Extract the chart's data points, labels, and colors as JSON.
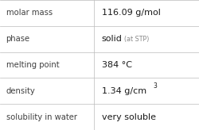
{
  "rows": [
    {
      "label": "molar mass",
      "value": "116.09 g/mol"
    },
    {
      "label": "phase",
      "value": "solid",
      "extra": "(at STP)"
    },
    {
      "label": "melting point",
      "value": "384 °C"
    },
    {
      "label": "density",
      "value": "1.34 g/cm",
      "superscript": "3"
    },
    {
      "label": "solubility in water",
      "value": "very soluble"
    }
  ],
  "bg_color": "#ffffff",
  "line_color": "#bbbbbb",
  "label_color": "#404040",
  "value_color": "#1a1a1a",
  "extra_color": "#888888",
  "label_fontsize": 7.2,
  "value_fontsize": 8.0,
  "extra_fontsize": 5.8,
  "sup_fontsize": 5.5,
  "col_split": 0.47
}
